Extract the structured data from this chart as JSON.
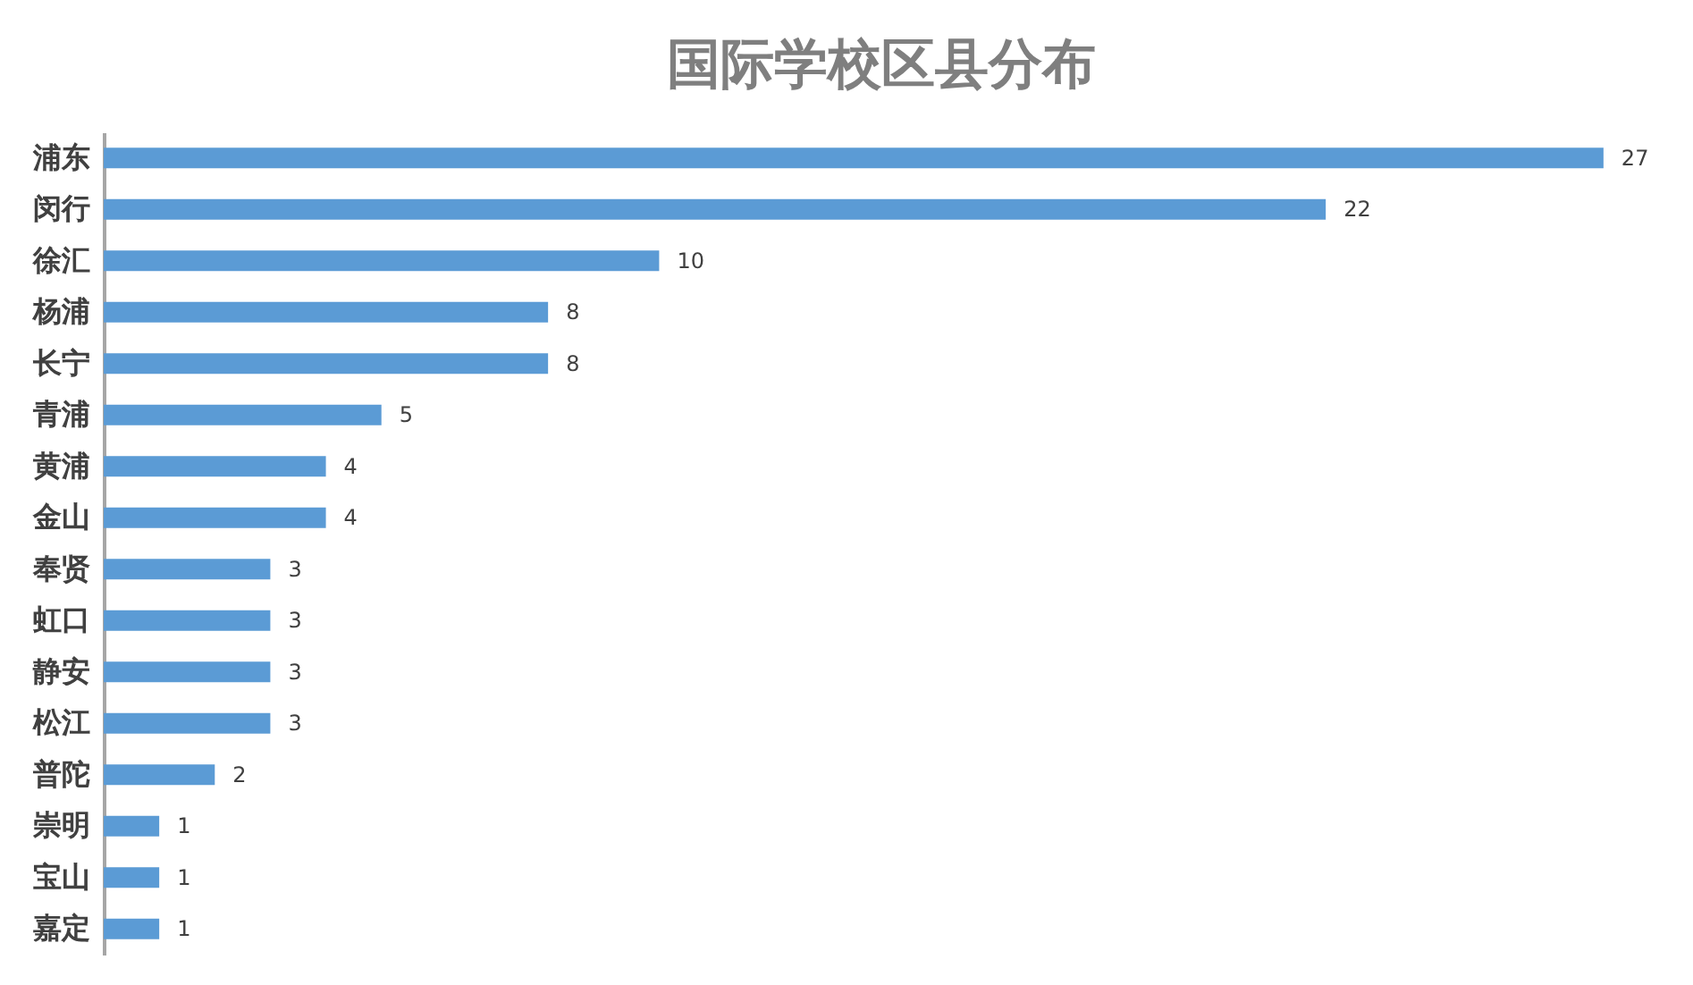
{
  "chart_data": {
    "type": "bar",
    "orientation": "horizontal",
    "title": "国际学校区县分布",
    "categories": [
      "浦东",
      "闵行",
      "徐汇",
      "杨浦",
      "长宁",
      "青浦",
      "黄浦",
      "金山",
      "奉贤",
      "虹口",
      "静安",
      "松江",
      "普陀",
      "崇明",
      "宝山",
      "嘉定"
    ],
    "values": [
      27,
      22,
      10,
      8,
      8,
      5,
      4,
      4,
      3,
      3,
      3,
      3,
      2,
      1,
      1,
      1
    ],
    "color": "#5b9bd5",
    "data_labels": true
  }
}
